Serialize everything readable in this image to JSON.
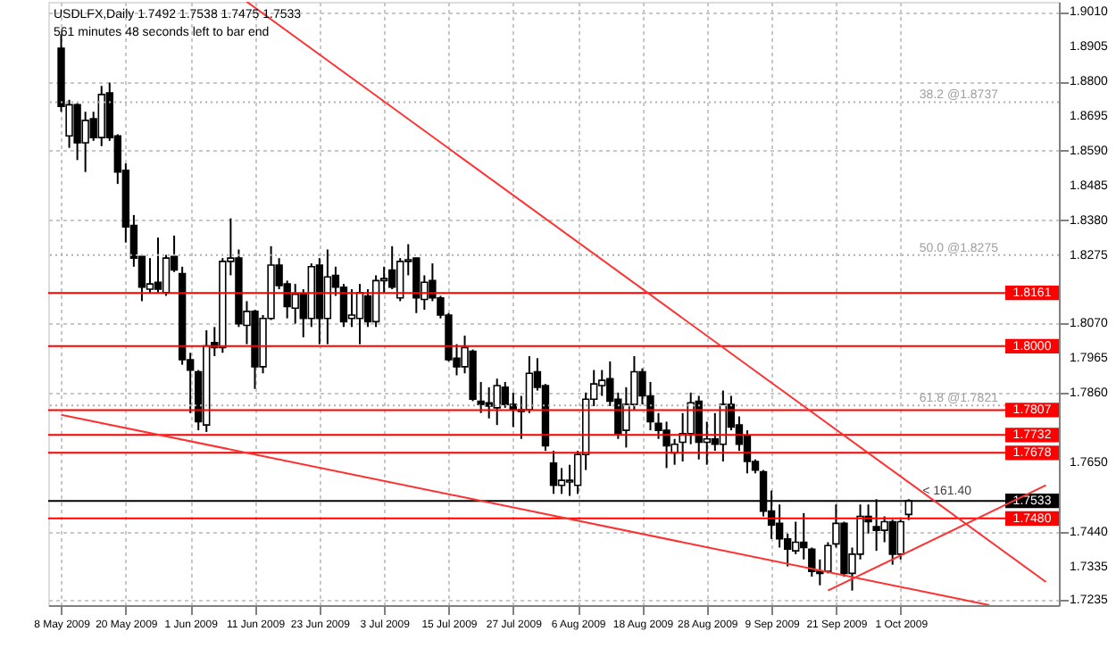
{
  "chart_data": {
    "type": "candlestick",
    "title": "USDLFX,Daily  1.7492 1.7538 1.7475 1.7533",
    "subtitle": "561 minutes 48 seconds left to bar end",
    "color": "#000000",
    "categories": [
      "8 May 2009",
      null,
      null,
      null,
      null,
      null,
      null,
      null,
      "20 May 2009",
      null,
      null,
      null,
      null,
      null,
      null,
      null,
      "1 Jun 2009",
      null,
      null,
      null,
      null,
      null,
      null,
      null,
      "11 Jun 2009",
      null,
      null,
      null,
      null,
      null,
      null,
      null,
      "23 Jun 2009",
      null,
      null,
      null,
      null,
      null,
      null,
      null,
      "3 Jul 2009",
      null,
      null,
      null,
      null,
      null,
      null,
      null,
      "15 Jul 2009",
      null,
      null,
      null,
      null,
      null,
      null,
      null,
      "27 Jul 2009",
      null,
      null,
      null,
      null,
      null,
      null,
      null,
      "6 Aug 2009",
      null,
      null,
      null,
      null,
      null,
      null,
      null,
      "18 Aug 2009",
      null,
      null,
      null,
      null,
      null,
      null,
      null,
      "28 Aug 2009",
      null,
      null,
      null,
      null,
      null,
      null,
      null,
      "9 Sep 2009",
      null,
      null,
      null,
      null,
      null,
      null,
      null,
      "21 Sep 2009",
      null,
      null,
      null,
      null,
      null,
      null,
      null,
      "1 Oct 2009",
      null,
      null,
      null,
      null,
      null,
      null,
      null,
      null,
      null,
      null,
      null,
      null,
      null,
      null,
      null,
      null,
      null,
      null
    ],
    "ohlc": [
      [
        1.89,
        1.8942,
        1.8708,
        1.8724
      ],
      [
        1.8635,
        1.8744,
        1.8599,
        1.8729
      ],
      [
        1.8729,
        1.8734,
        1.8562,
        1.8614
      ],
      [
        1.8614,
        1.8708,
        1.8526,
        1.8682
      ],
      [
        1.8687,
        1.8708,
        1.862,
        1.863
      ],
      [
        1.863,
        1.8786,
        1.8604,
        1.876
      ],
      [
        1.8765,
        1.8796,
        1.862,
        1.863
      ],
      [
        1.8635,
        1.864,
        1.849,
        1.8526
      ],
      [
        1.8531,
        1.8552,
        1.8313,
        1.836
      ],
      [
        1.8365,
        1.8396,
        1.824,
        1.8266
      ],
      [
        1.8271,
        1.8276,
        1.8136,
        1.8178
      ],
      [
        1.8172,
        1.8266,
        1.8162,
        1.8188
      ],
      [
        1.8193,
        1.8328,
        1.8162,
        1.8172
      ],
      [
        1.8162,
        1.8276,
        1.8152,
        1.8266
      ],
      [
        1.8271,
        1.8334,
        1.8224,
        1.823
      ],
      [
        1.8219,
        1.824,
        1.7944,
        1.7959
      ],
      [
        1.7959,
        1.798,
        1.7798,
        1.7928
      ],
      [
        1.7923,
        1.7928,
        1.7746,
        1.7772
      ],
      [
        1.7762,
        1.8048,
        1.7741,
        1.8001
      ],
      [
        1.8011,
        1.8058,
        1.797,
        1.7996
      ],
      [
        1.7996,
        1.8266,
        1.798,
        1.8256
      ],
      [
        1.8256,
        1.8386,
        1.8214,
        1.8266
      ],
      [
        1.8266,
        1.8292,
        1.8058,
        1.8068
      ],
      [
        1.8063,
        1.8136,
        1.8006,
        1.8105
      ],
      [
        1.8105,
        1.811,
        1.7871,
        1.7938
      ],
      [
        1.7938,
        1.8094,
        1.7918,
        1.8084
      ],
      [
        1.8084,
        1.8302,
        1.8079,
        1.8245
      ],
      [
        1.8245,
        1.8266,
        1.8172,
        1.8183
      ],
      [
        1.8188,
        1.8198,
        1.8084,
        1.812
      ],
      [
        1.8115,
        1.8188,
        1.8068,
        1.8157
      ],
      [
        1.8157,
        1.8172,
        1.8027,
        1.8084
      ],
      [
        1.8084,
        1.825,
        1.8058,
        1.824
      ],
      [
        1.8245,
        1.8266,
        1.8006,
        1.8084
      ],
      [
        1.8084,
        1.8292,
        1.8006,
        1.8209
      ],
      [
        1.8214,
        1.824,
        1.8152,
        1.8178
      ],
      [
        1.8178,
        1.8188,
        1.8058,
        1.8074
      ],
      [
        1.8084,
        1.8172,
        1.8058,
        1.8094
      ],
      [
        1.8084,
        1.8188,
        1.8006,
        1.8162
      ],
      [
        1.8152,
        1.8172,
        1.8058,
        1.8074
      ],
      [
        1.8074,
        1.8214,
        1.8058,
        1.8198
      ],
      [
        1.8198,
        1.824,
        1.8162,
        1.8204
      ],
      [
        1.823,
        1.8302,
        1.8172,
        1.8178
      ],
      [
        1.8146,
        1.8266,
        1.8136,
        1.8256
      ],
      [
        1.8256,
        1.8308,
        1.8214,
        1.8261
      ],
      [
        1.8266,
        1.8266,
        1.81,
        1.8146
      ],
      [
        1.8141,
        1.8214,
        1.811,
        1.8193
      ],
      [
        1.8198,
        1.825,
        1.8136,
        1.8146
      ],
      [
        1.8146,
        1.8152,
        1.8084,
        1.8094
      ],
      [
        1.8094,
        1.81,
        1.7954,
        1.7959
      ],
      [
        1.7964,
        1.8006,
        1.7912,
        1.7938
      ],
      [
        1.7938,
        1.8032,
        1.7918,
        1.7996
      ],
      [
        1.7985,
        1.799,
        1.7834,
        1.784
      ],
      [
        1.7834,
        1.7892,
        1.7798,
        1.7824
      ],
      [
        1.7829,
        1.7876,
        1.7782,
        1.7819
      ],
      [
        1.7814,
        1.7902,
        1.7762,
        1.7881
      ],
      [
        1.7876,
        1.7892,
        1.7814,
        1.7824
      ],
      [
        1.7824,
        1.786,
        1.7756,
        1.7808
      ],
      [
        1.7808,
        1.785,
        1.772,
        1.7803
      ],
      [
        1.7808,
        1.797,
        1.7798,
        1.7918
      ],
      [
        1.7923,
        1.7964,
        1.7866,
        1.7876
      ],
      [
        1.7881,
        1.7886,
        1.7684,
        1.7699
      ],
      [
        1.7647,
        1.7684,
        1.7554,
        1.758
      ],
      [
        1.758,
        1.7632,
        1.7554,
        1.7595
      ],
      [
        1.759,
        1.7642,
        1.7548,
        1.7595
      ],
      [
        1.758,
        1.7684,
        1.7554,
        1.7673
      ],
      [
        1.7673,
        1.786,
        1.7626,
        1.784
      ],
      [
        1.784,
        1.7928,
        1.7819,
        1.7886
      ],
      [
        1.7881,
        1.7928,
        1.785,
        1.7897
      ],
      [
        1.7902,
        1.7954,
        1.7819,
        1.7834
      ],
      [
        1.784,
        1.786,
        1.772,
        1.7736
      ],
      [
        1.7746,
        1.7876,
        1.7694,
        1.7824
      ],
      [
        1.7824,
        1.797,
        1.7808,
        1.7923
      ],
      [
        1.7923,
        1.7933,
        1.7824,
        1.785
      ],
      [
        1.785,
        1.7892,
        1.7746,
        1.7772
      ],
      [
        1.7767,
        1.7798,
        1.772,
        1.7746
      ],
      [
        1.7746,
        1.7772,
        1.7632,
        1.7699
      ],
      [
        1.7678,
        1.772,
        1.7642,
        1.7704
      ],
      [
        1.771,
        1.7798,
        1.7652,
        1.7736
      ],
      [
        1.7736,
        1.786,
        1.7704,
        1.7829
      ],
      [
        1.7834,
        1.785,
        1.7658,
        1.771
      ],
      [
        1.771,
        1.7772,
        1.7642,
        1.772
      ],
      [
        1.772,
        1.7798,
        1.7684,
        1.7704
      ],
      [
        1.7704,
        1.7866,
        1.7652,
        1.7824
      ],
      [
        1.7824,
        1.785,
        1.7746,
        1.7756
      ],
      [
        1.7762,
        1.7788,
        1.7684,
        1.7704
      ],
      [
        1.773,
        1.7746,
        1.7616,
        1.7652
      ],
      [
        1.7652,
        1.7658,
        1.7616,
        1.7626
      ],
      [
        1.7621,
        1.7626,
        1.7486,
        1.7502
      ],
      [
        1.7502,
        1.7564,
        1.7418,
        1.746
      ],
      [
        1.7465,
        1.7522,
        1.7392,
        1.7418
      ],
      [
        1.7418,
        1.7434,
        1.7335,
        1.7387
      ],
      [
        1.7382,
        1.747,
        1.7372,
        1.7408
      ],
      [
        1.7408,
        1.7496,
        1.7356,
        1.7392
      ],
      [
        1.7387,
        1.7392,
        1.7304,
        1.732
      ],
      [
        1.732,
        1.7356,
        1.7278,
        1.7314
      ],
      [
        1.732,
        1.7408,
        1.7314,
        1.7398
      ],
      [
        1.7403,
        1.7522,
        1.7392,
        1.7465
      ],
      [
        1.7465,
        1.747,
        1.7304,
        1.7314
      ],
      [
        1.7314,
        1.7392,
        1.7262,
        1.7372
      ],
      [
        1.7372,
        1.7522,
        1.7356,
        1.7486
      ],
      [
        1.7486,
        1.7522,
        1.7434,
        1.747
      ],
      [
        1.7455,
        1.7538,
        1.7382,
        1.7444
      ],
      [
        1.7444,
        1.7486,
        1.7408,
        1.747
      ],
      [
        1.747,
        1.7476,
        1.734,
        1.7372
      ],
      [
        1.7372,
        1.7476,
        1.7356,
        1.747
      ],
      [
        1.7492,
        1.7538,
        1.7475,
        1.7533
      ],
      null,
      null,
      null,
      null,
      null,
      null,
      null,
      null,
      null,
      null,
      null,
      null,
      null,
      null,
      null,
      null,
      null
    ],
    "series": [
      {
        "type": "line",
        "color": "#ff3030",
        "values": [
          null,
          null,
          null,
          null,
          null,
          null,
          null,
          null,
          null,
          null,
          null,
          null,
          null,
          null,
          null,
          null,
          null,
          null,
          null,
          null,
          null,
          null,
          null,
          1.904,
          null,
          null,
          null,
          null,
          null,
          null,
          null,
          null,
          null,
          null,
          null,
          null,
          null,
          null,
          null,
          null,
          null,
          null,
          null,
          null,
          null,
          null,
          null,
          null,
          null,
          null,
          null,
          null,
          null,
          null,
          null,
          null,
          null,
          null,
          null,
          null,
          null,
          null,
          null,
          null,
          null,
          null,
          null,
          null,
          null,
          null,
          null,
          null,
          null,
          null,
          null,
          null,
          null,
          null,
          null,
          null,
          null,
          null,
          null,
          null,
          null,
          null,
          null,
          null,
          null,
          null,
          null,
          null,
          null,
          null,
          null,
          null,
          null,
          null,
          null,
          null,
          null,
          null,
          null,
          null,
          null,
          null,
          null,
          null,
          null,
          null,
          null,
          null,
          null,
          null,
          null,
          null,
          null,
          null,
          null,
          null,
          null,
          null,
          1.7288
        ]
      },
      {
        "type": "line",
        "color": "#ff3030",
        "values": [
          1.7793,
          null,
          null,
          null,
          null,
          null,
          null,
          null,
          null,
          null,
          null,
          null,
          null,
          null,
          null,
          null,
          null,
          null,
          null,
          null,
          null,
          null,
          null,
          null,
          null,
          null,
          null,
          null,
          null,
          null,
          null,
          null,
          null,
          null,
          null,
          null,
          null,
          null,
          null,
          null,
          null,
          null,
          null,
          null,
          null,
          null,
          null,
          null,
          null,
          null,
          null,
          null,
          null,
          null,
          null,
          null,
          null,
          null,
          null,
          null,
          null,
          null,
          null,
          null,
          null,
          null,
          null,
          null,
          null,
          null,
          null,
          null,
          null,
          null,
          null,
          null,
          null,
          null,
          null,
          null,
          null,
          null,
          null,
          null,
          null,
          null,
          null,
          null,
          null,
          null,
          null,
          null,
          null,
          null,
          null,
          null,
          null,
          null,
          null,
          null,
          null,
          null,
          null,
          null,
          null,
          null,
          null,
          null,
          null,
          null,
          null,
          null,
          null,
          null,
          null,
          1.7218,
          null,
          null,
          null,
          null,
          null,
          null,
          null
        ]
      },
      {
        "type": "line",
        "color": "#ff3030",
        "values": [
          null,
          null,
          null,
          null,
          null,
          null,
          null,
          null,
          null,
          null,
          null,
          null,
          null,
          null,
          null,
          null,
          null,
          null,
          null,
          null,
          null,
          null,
          null,
          null,
          null,
          null,
          null,
          null,
          null,
          null,
          null,
          null,
          null,
          null,
          null,
          null,
          null,
          null,
          null,
          null,
          null,
          null,
          null,
          null,
          null,
          null,
          null,
          null,
          null,
          null,
          null,
          null,
          null,
          null,
          null,
          null,
          null,
          null,
          null,
          null,
          null,
          null,
          null,
          null,
          null,
          null,
          null,
          null,
          null,
          null,
          null,
          null,
          null,
          null,
          null,
          null,
          null,
          null,
          null,
          null,
          null,
          null,
          null,
          null,
          null,
          null,
          null,
          null,
          null,
          null,
          null,
          null,
          null,
          null,
          null,
          1.7262,
          null,
          null,
          null,
          null,
          null,
          null,
          null,
          null,
          null,
          null,
          null,
          null,
          null,
          null,
          null,
          null,
          null,
          null,
          null,
          null,
          null,
          null,
          null,
          null,
          null,
          null,
          1.758
        ]
      }
    ],
    "ylim": [
      1.7218,
      1.904
    ],
    "yticks": [
      {
        "value": 1.901,
        "label": "1.9010"
      },
      1.8905,
      {
        "value": 1.88,
        "label": "1.8800"
      },
      1.8695,
      {
        "value": 1.859,
        "label": "1.8590"
      },
      1.8485,
      {
        "value": 1.838,
        "label": "1.8380"
      },
      1.8275,
      {
        "value": 1.807,
        "label": "1.8070"
      },
      1.7965,
      {
        "value": 1.786,
        "label": "1.7860"
      },
      {
        "value": 1.765,
        "label": "1.7650"
      },
      {
        "value": 1.744,
        "label": "1.7440"
      },
      1.7335,
      1.7235
    ],
    "ref_lines": [
      {
        "axis": "y",
        "value": 1.8737,
        "label": "38.2 @1.8737",
        "color": "#b0b0b0",
        "line_style": "dotted"
      },
      {
        "axis": "y",
        "value": 1.8275,
        "label": "50.0 @1.8275",
        "color": "#b0b0b0",
        "line_style": "dotted"
      },
      {
        "axis": "y",
        "value": 1.7821,
        "label": "61.8 @1.7821",
        "color": "#b0b0b0",
        "line_style": "dotted"
      },
      {
        "axis": "y",
        "value": 1.8161,
        "label": "1.8161",
        "color": "#ff0000",
        "line_style": "solid"
      },
      {
        "axis": "y",
        "value": 1.8,
        "label": "1.8000",
        "color": "#ff0000",
        "line_style": "solid"
      },
      {
        "axis": "y",
        "value": 1.7807,
        "label": "1.7807",
        "color": "#ff0000",
        "line_style": "solid"
      },
      {
        "axis": "y",
        "value": 1.7732,
        "label": "1.7732",
        "color": "#ff0000",
        "line_style": "solid"
      },
      {
        "axis": "y",
        "value": 1.7678,
        "label": "1.7678",
        "color": "#ff0000",
        "line_style": "solid"
      },
      {
        "axis": "y",
        "value": 1.748,
        "label": "1.7480",
        "color": "#ff0000",
        "line_style": "solid"
      },
      {
        "axis": "y",
        "value": 1.7533,
        "label": "1.7533",
        "color": "#000000",
        "line_style": "solid"
      }
    ],
    "annotations": [
      "< 161.40"
    ],
    "grid": true,
    "marker": "none",
    "line_style": "solid"
  }
}
